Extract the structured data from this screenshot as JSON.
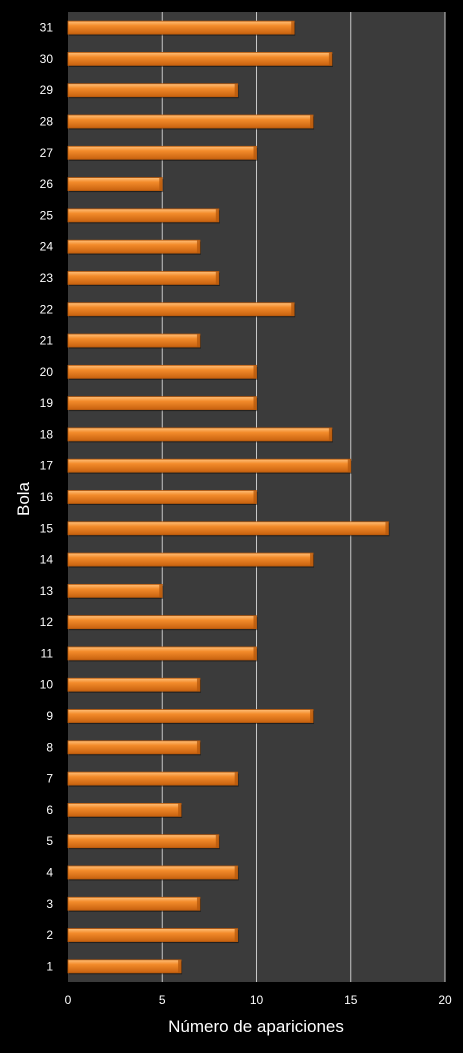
{
  "chart_data": {
    "type": "bar",
    "orientation": "horizontal",
    "ylabel": "Bola",
    "xlabel": "Número de apariciones",
    "xlim": [
      0,
      20
    ],
    "xticks": [
      "0",
      "5",
      "10",
      "15",
      "20"
    ],
    "grid": "vertical",
    "categories": [
      "1",
      "2",
      "3",
      "4",
      "5",
      "6",
      "7",
      "8",
      "9",
      "10",
      "11",
      "12",
      "13",
      "14",
      "15",
      "16",
      "17",
      "18",
      "19",
      "20",
      "21",
      "22",
      "23",
      "24",
      "25",
      "26",
      "27",
      "28",
      "29",
      "30",
      "31"
    ],
    "values": [
      6,
      9,
      7,
      9,
      8,
      6,
      9,
      7,
      13,
      7,
      10,
      10,
      5,
      13,
      17,
      10,
      15,
      14,
      10,
      10,
      7,
      12,
      8,
      7,
      8,
      5,
      10,
      13,
      9,
      14,
      12
    ],
    "colors": {
      "page_background": "#000000",
      "plot_background": "#3b3b3b",
      "gridline": "#c8c8c8",
      "bar_fill": "#f07f1b",
      "bar_highlight": "#ffc07a",
      "bar_shadow": "#b85a0d",
      "text": "#ffffff"
    }
  }
}
